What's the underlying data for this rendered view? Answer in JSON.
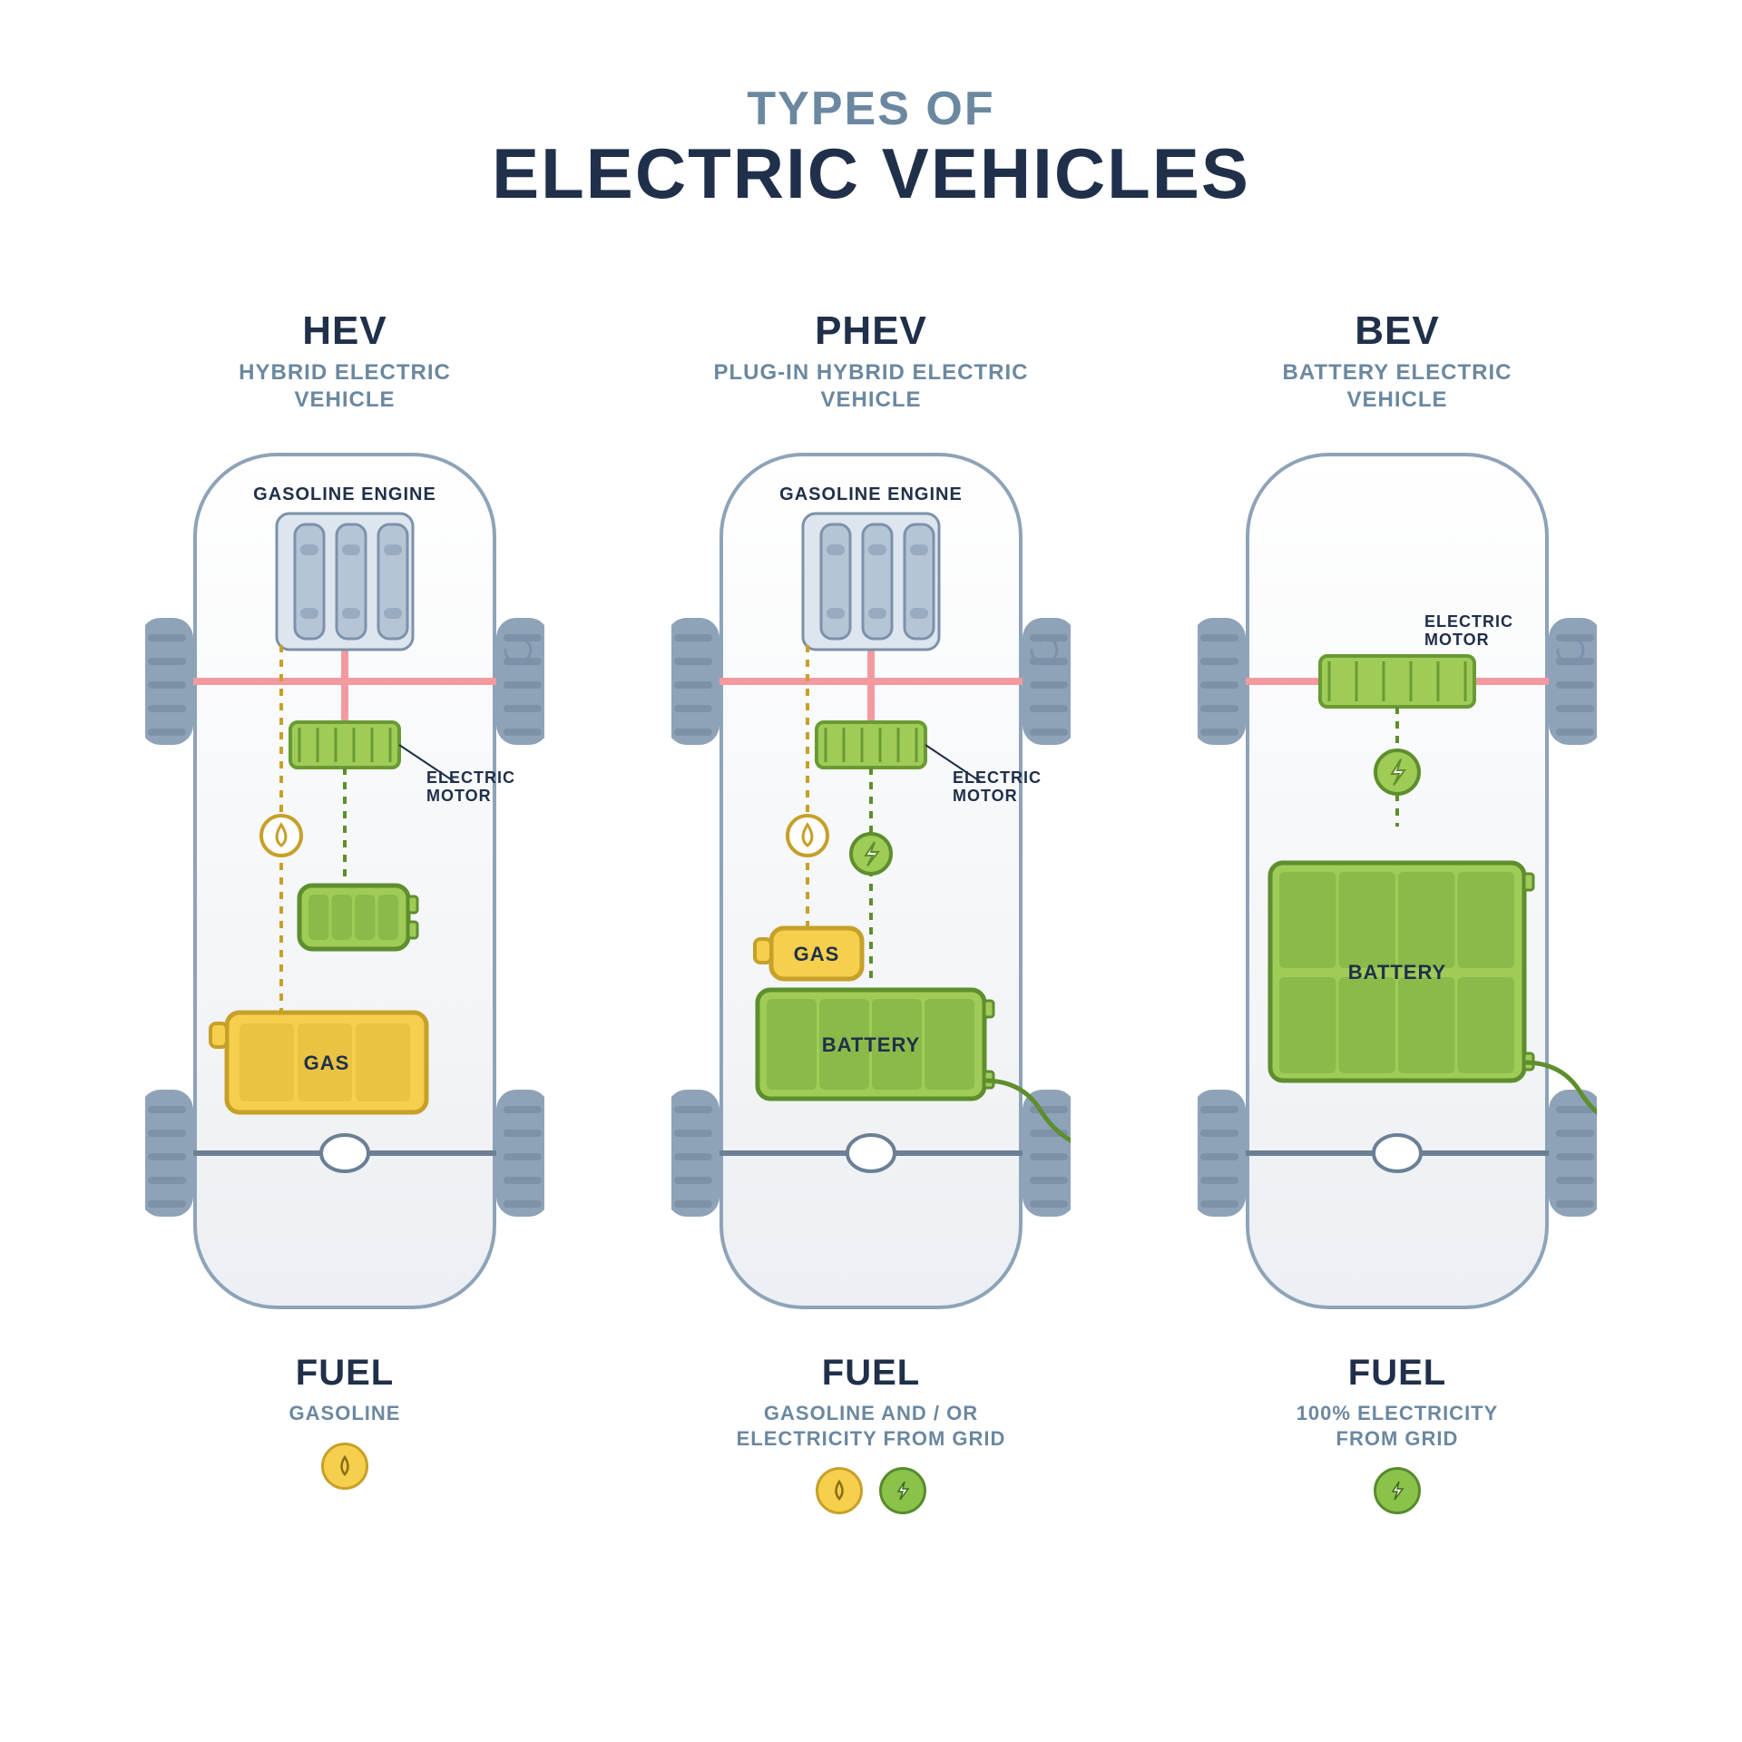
{
  "title": {
    "small": "TYPES OF",
    "big": "ELECTRIC VEHICLES"
  },
  "colors": {
    "body_outline": "#8ea3b8",
    "body_fill_top": "#ffffff",
    "body_fill_bottom": "#eceff3",
    "tire": "#8ea3b8",
    "tire_tread": "#6b7f95",
    "axle": "#f29aa0",
    "axle_diff": "#6b7f95",
    "engine_fill": "#b6c5d6",
    "engine_stroke": "#7c92aa",
    "motor_fill": "#9fcb57",
    "motor_stroke": "#6a9a34",
    "battery_fill": "#9fcb57",
    "battery_stroke": "#5e8e2d",
    "gas_fill": "#f6cf4c",
    "gas_stroke": "#c6a029",
    "elec_line": "#5e8e2d",
    "fuel_line": "#c6a029",
    "plug_line": "#5e8e2d",
    "text_dark": "#20304a",
    "text_light": "#6b88a0",
    "rot_arrow": "#7c92aa"
  },
  "panels": [
    {
      "id": "hev",
      "title": "HEV",
      "subtitle": "HYBRID ELECTRIC\nVEHICLE",
      "labels": {
        "engine": "GASOLINE ENGINE",
        "motor": "ELECTRIC\nMOTOR",
        "gas": "GAS"
      },
      "fuel_title": "FUEL",
      "fuel_desc": "GASOLINE",
      "fuel_icons": [
        "oil"
      ],
      "layout": {
        "has_engine": true,
        "has_motor": true,
        "motor_pos": "upper",
        "has_small_battery": true,
        "has_big_battery": false,
        "has_gas_big": true,
        "has_gas_small": false,
        "has_plug": false,
        "elec_icon_on_line": false,
        "oil_icon_on_line": true
      }
    },
    {
      "id": "phev",
      "title": "PHEV",
      "subtitle": "PLUG-IN HYBRID ELECTRIC\nVEHICLE",
      "labels": {
        "engine": "GASOLINE ENGINE",
        "motor": "ELECTRIC\nMOTOR",
        "gas": "GAS",
        "battery": "BATTERY"
      },
      "fuel_title": "FUEL",
      "fuel_desc": "GASOLINE AND / OR\nELECTRICITY FROM GRID",
      "fuel_icons": [
        "oil",
        "elec"
      ],
      "layout": {
        "has_engine": true,
        "has_motor": true,
        "motor_pos": "upper",
        "has_small_battery": false,
        "has_big_battery": true,
        "big_battery_size": "med",
        "has_gas_big": false,
        "has_gas_small": true,
        "has_plug": true,
        "elec_icon_on_line": true,
        "oil_icon_on_line": true
      }
    },
    {
      "id": "bev",
      "title": "BEV",
      "subtitle": "BATTERY ELECTRIC\nVEHICLE",
      "labels": {
        "motor": "ELECTRIC\nMOTOR",
        "battery": "BATTERY"
      },
      "fuel_title": "FUEL",
      "fuel_desc": "100% ELECTRICITY\nFROM GRID",
      "fuel_icons": [
        "elec"
      ],
      "layout": {
        "has_engine": false,
        "has_motor": true,
        "motor_pos": "axle",
        "has_small_battery": false,
        "has_big_battery": true,
        "big_battery_size": "large",
        "has_gas_big": false,
        "has_gas_small": false,
        "has_plug": true,
        "elec_icon_on_line": true,
        "oil_icon_on_line": false
      }
    }
  ]
}
